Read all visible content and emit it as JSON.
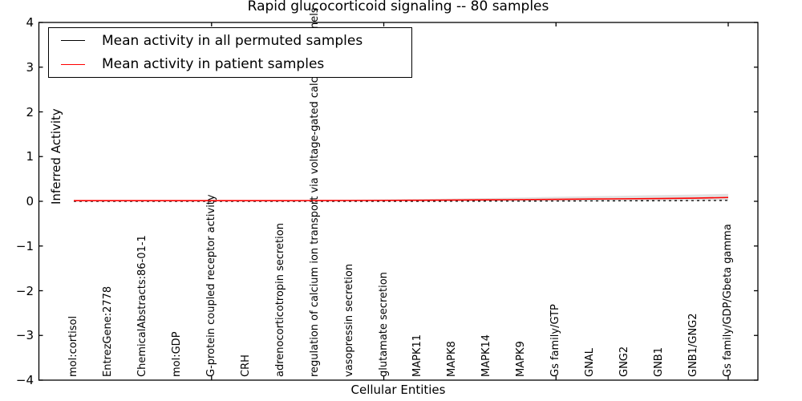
{
  "figure": {
    "title": "Rapid glucocorticoid signaling -- 80 samples",
    "xlabel": "Cellular Entities",
    "ylabel": "Inferred Activity",
    "background_color": "#ffffff",
    "frame_color": "#000000"
  },
  "chart_data": {
    "type": "line",
    "title": "Rapid glucocorticoid signaling -- 80 samples",
    "xlabel": "Cellular Entities",
    "ylabel": "Inferred Activity",
    "ylim": [
      -4,
      4
    ],
    "yticks": [
      4,
      3,
      2,
      1,
      0,
      -1,
      -2,
      -3,
      -4
    ],
    "ytick_labels": [
      "4",
      "3",
      "2",
      "1",
      "0",
      "−1",
      "−2",
      "−3",
      "−4"
    ],
    "grid": false,
    "legend_position": "upper left",
    "categories": [
      "mol:cortisol",
      "EntrezGene:2778",
      "ChemicalAbstracts:86-01-1",
      "mol:GDP",
      "G-protein coupled receptor activity",
      "CRH",
      "adrenocorticotropin secretion",
      "regulation of calcium ion transport via voltage-gated calcium channels",
      "vasopressin secretion",
      "glutamate secretion",
      "MAPK11",
      "MAPK8",
      "MAPK14",
      "MAPK9",
      "Gs family/GTP",
      "GNAL",
      "GNG2",
      "GNB1",
      "GNB1/GNG2",
      "Gs family/GDP/Gbeta gamma"
    ],
    "x_major_tick_positions": [
      4,
      9,
      14,
      19
    ],
    "series": [
      {
        "name": "Mean activity in all permuted samples",
        "color": "#000000",
        "dash": [
          3,
          4
        ],
        "width": 1.3,
        "values": [
          0.0,
          0.0,
          0.0,
          0.0,
          0.0,
          0.0,
          0.0,
          0.0,
          0.0,
          0.0,
          0.0,
          0.002,
          0.004,
          0.005,
          0.007,
          0.009,
          0.011,
          0.013,
          0.016,
          0.02
        ]
      },
      {
        "name": "Mean activity in patient samples",
        "color": "#ff0000",
        "dash": null,
        "width": 1.6,
        "values": [
          0.015,
          0.015,
          0.015,
          0.015,
          0.015,
          0.015,
          0.015,
          0.016,
          0.018,
          0.02,
          0.024,
          0.028,
          0.032,
          0.038,
          0.044,
          0.05,
          0.056,
          0.062,
          0.07,
          0.085
        ]
      }
    ],
    "band": {
      "name": "permutation-spread-band",
      "color": "#c8c8c8",
      "opacity": 0.55,
      "upper": [
        0.025,
        0.025,
        0.025,
        0.025,
        0.025,
        0.027,
        0.03,
        0.032,
        0.036,
        0.042,
        0.05,
        0.06,
        0.072,
        0.085,
        0.1,
        0.112,
        0.125,
        0.138,
        0.15,
        0.165
      ],
      "lower": [
        0.005,
        0.005,
        0.005,
        0.005,
        0.005,
        0.005,
        0.005,
        0.004,
        0.003,
        0.002,
        0.001,
        0.0,
        0.0,
        0.0,
        0.002,
        0.004,
        0.006,
        0.008,
        0.012,
        0.018
      ]
    }
  }
}
